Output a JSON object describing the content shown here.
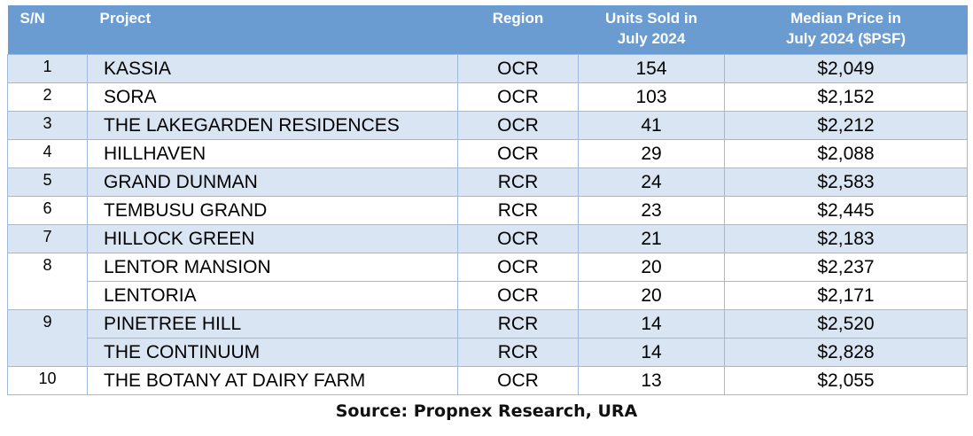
{
  "table": {
    "headers": {
      "sn": "S/N",
      "project": "Project",
      "region": "Region",
      "units_line1": "Units Sold in",
      "units_line2": "July 2024",
      "price_line1": "Median Price in",
      "price_line2": "July 2024 ($PSF)"
    },
    "colors": {
      "header_bg": "#6a9bd1",
      "band_bg": "#d9e5f3",
      "border": "#9db9dd"
    },
    "rows": [
      {
        "sn": "1",
        "project": "KASSIA",
        "region": "OCR",
        "units": "154",
        "price": "$2,049"
      },
      {
        "sn": "2",
        "project": "SORA",
        "region": "OCR",
        "units": "103",
        "price": "$2,152"
      },
      {
        "sn": "3",
        "project": "THE LAKEGARDEN RESIDENCES",
        "region": "OCR",
        "units": "41",
        "price": "$2,212"
      },
      {
        "sn": "4",
        "project": "HILLHAVEN",
        "region": "OCR",
        "units": "29",
        "price": "$2,088"
      },
      {
        "sn": "5",
        "project": "GRAND DUNMAN",
        "region": "RCR",
        "units": "24",
        "price": "$2,583"
      },
      {
        "sn": "6",
        "project": "TEMBUSU GRAND",
        "region": "RCR",
        "units": "23",
        "price": "$2,445"
      },
      {
        "sn": "7",
        "project": "HILLOCK GREEN",
        "region": "OCR",
        "units": "21",
        "price": "$2,183"
      },
      {
        "sn": "8",
        "project": "LENTOR MANSION",
        "region": "OCR",
        "units": "20",
        "price": "$2,237"
      },
      {
        "sn": "",
        "project": "LENTORIA",
        "region": "OCR",
        "units": "20",
        "price": "$2,171"
      },
      {
        "sn": "9",
        "project": "PINETREE HILL",
        "region": "RCR",
        "units": "14",
        "price": "$2,520"
      },
      {
        "sn": "",
        "project": "THE CONTINUUM",
        "region": "RCR",
        "units": "14",
        "price": "$2,828"
      },
      {
        "sn": "10",
        "project": "THE BOTANY AT DAIRY FARM",
        "region": "OCR",
        "units": "13",
        "price": "$2,055"
      }
    ]
  },
  "source": "Source: Propnex Research, URA"
}
